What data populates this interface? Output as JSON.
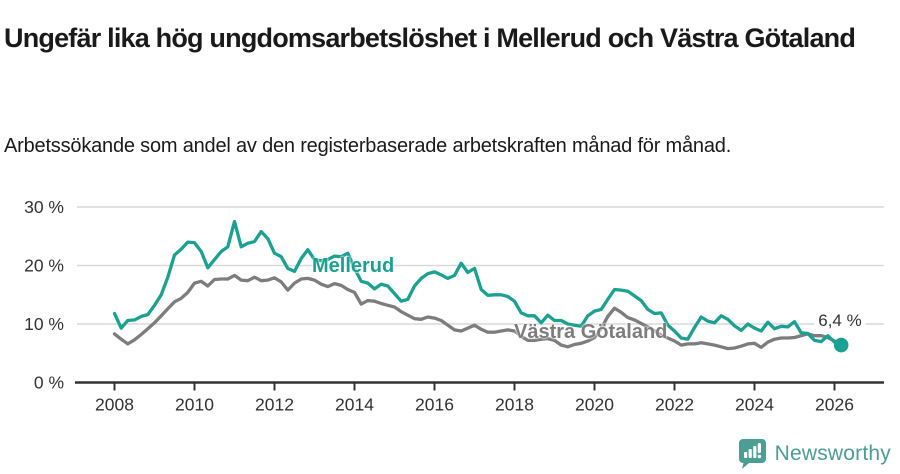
{
  "header": {
    "title": "Ungefär lika hög ungdomsarbetslöshet i Mellerud och Västra Götaland",
    "subtitle": "Arbetssökande som andel av den registerbaserade arbetskraften månad för månad."
  },
  "chart_data": {
    "type": "line",
    "title": "Ungefär lika hög ungdomsarbetslöshet i Mellerud och Västra Götaland",
    "xlabel": "",
    "ylabel": "",
    "x_start_year": 2008,
    "x_step_years": 0.166667,
    "x_ticks": [
      2008,
      2010,
      2012,
      2014,
      2016,
      2018,
      2020,
      2022,
      2024,
      2026
    ],
    "y_ticks": [
      0,
      10,
      20,
      30
    ],
    "y_tick_labels": [
      "0 %",
      "10 %",
      "20 %",
      "30 %"
    ],
    "ylim": [
      0,
      31
    ],
    "grid": "horizontal",
    "legend_position": "inline-labels",
    "series": [
      {
        "name": "Mellerud",
        "color": "#1aa192",
        "values": [
          11.8,
          9.3,
          10.6,
          10.7,
          11.3,
          11.6,
          13.2,
          15.0,
          18.0,
          21.8,
          22.8,
          24.0,
          23.9,
          22.4,
          19.6,
          21.0,
          22.4,
          23.2,
          27.5,
          23.2,
          23.8,
          24.1,
          25.8,
          24.6,
          22.1,
          21.5,
          19.5,
          19.0,
          21.2,
          22.7,
          21.0,
          20.8,
          21.0,
          21.6,
          21.5,
          22.1,
          19.5,
          17.3,
          17.0,
          16.0,
          16.8,
          16.5,
          15.2,
          13.9,
          14.2,
          16.5,
          17.8,
          18.6,
          18.9,
          18.4,
          17.8,
          18.3,
          20.4,
          18.8,
          19.5,
          15.9,
          14.9,
          15.0,
          15.0,
          14.7,
          13.9,
          11.9,
          11.4,
          11.4,
          10.2,
          11.5,
          10.6,
          10.6,
          10.0,
          9.8,
          9.6,
          11.4,
          12.2,
          12.5,
          14.2,
          15.9,
          15.8,
          15.6,
          14.8,
          14.0,
          12.5,
          11.8,
          11.9,
          9.8,
          8.8,
          7.6,
          7.4,
          9.4,
          11.2,
          10.5,
          10.2,
          11.4,
          10.8,
          9.7,
          8.9,
          10.0,
          9.3,
          8.8,
          10.3,
          9.2,
          9.6,
          9.5,
          10.4,
          8.5,
          8.4,
          7.2,
          7.0,
          8.0,
          6.9,
          6.4
        ]
      },
      {
        "name": "Västra Götaland",
        "color": "#7d7d7d",
        "values": [
          8.3,
          7.4,
          6.6,
          7.3,
          8.2,
          9.2,
          10.2,
          11.4,
          12.6,
          13.8,
          14.4,
          15.4,
          17.0,
          17.3,
          16.5,
          17.6,
          17.7,
          17.7,
          18.3,
          17.5,
          17.4,
          18.0,
          17.4,
          17.5,
          17.9,
          17.2,
          15.8,
          17.0,
          17.7,
          17.8,
          17.5,
          16.8,
          16.4,
          16.9,
          16.6,
          15.9,
          15.4,
          13.4,
          14.0,
          13.9,
          13.5,
          13.2,
          12.9,
          12.1,
          11.5,
          10.9,
          10.8,
          11.2,
          11.0,
          10.6,
          9.8,
          9.0,
          8.8,
          9.3,
          9.8,
          9.1,
          8.6,
          8.6,
          8.8,
          9.0,
          8.8,
          7.9,
          7.2,
          7.2,
          7.4,
          7.5,
          7.2,
          6.4,
          6.1,
          6.5,
          6.7,
          7.1,
          7.7,
          9.2,
          11.3,
          12.7,
          12.0,
          11.1,
          10.7,
          10.1,
          9.5,
          8.8,
          8.1,
          7.6,
          7.1,
          6.4,
          6.6,
          6.6,
          6.8,
          6.6,
          6.4,
          6.1,
          5.8,
          5.9,
          6.2,
          6.6,
          6.7,
          6.0,
          6.9,
          7.4,
          7.6,
          7.6,
          7.7,
          8.0,
          8.3,
          8.0,
          8.0,
          7.7,
          7.1
        ]
      }
    ],
    "annotation": {
      "label": "6,4 %",
      "value": 6.4,
      "series": "Mellerud"
    }
  },
  "colors": {
    "mellerud": "#1aa192",
    "vastra_gotaland": "#7d7d7d",
    "gridline": "#d9d9d9",
    "axis": "#333333",
    "brand": "#4a9e93"
  },
  "footer": {
    "brand": "Newsworthy"
  }
}
